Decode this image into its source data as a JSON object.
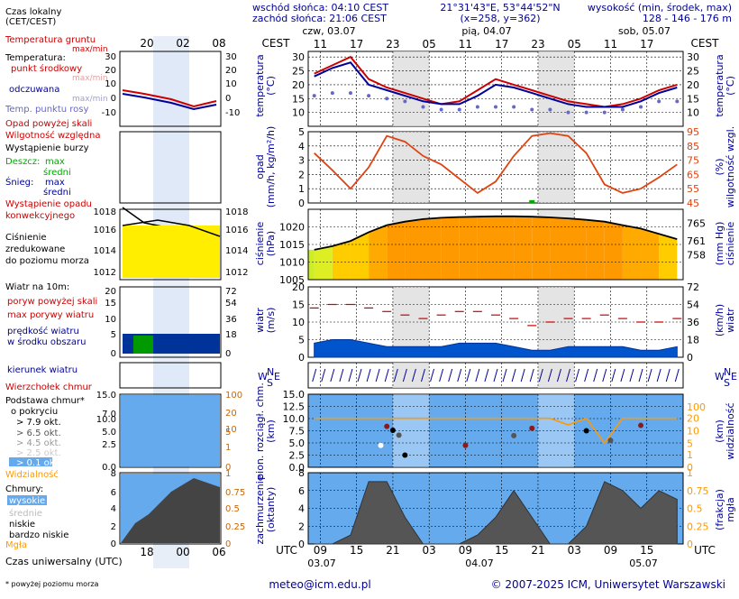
{
  "header": {
    "sunrise": "wschód słońca: 04:10 CEST",
    "sunset": "zachód słońca: 21:06 CEST",
    "coords": "21°31'43\"E, 53°44'52\"N",
    "grid": "(x=258, y=362)",
    "height_label": "wysokość (min, środek, max)",
    "height_values": "128 - 146 - 176 m",
    "tz_local": "CEST",
    "tz_utc": "UTC"
  },
  "days": [
    {
      "name": "czw, 03.07",
      "utc_date": "03.07"
    },
    {
      "name": "pią, 04.07",
      "utc_date": "04.07"
    },
    {
      "name": "sob, 05.07",
      "utc_date": "05.07"
    }
  ],
  "hours_local": [
    "11",
    "17",
    "23",
    "05",
    "11",
    "17",
    "23",
    "05",
    "11",
    "17"
  ],
  "hours_utc": [
    "09",
    "15",
    "21",
    "03",
    "09",
    "15",
    "21",
    "03",
    "09",
    "15"
  ],
  "legend_top": [
    "20",
    "02",
    "08"
  ],
  "legend_bottom": [
    "18",
    "00",
    "06"
  ],
  "legend": {
    "czas_lokalny": "Czas lokalny",
    "czas_lokalny2": "(CET/CEST)",
    "temp_gruntu": "Temperatura gruntu",
    "maxmin": "max/min",
    "temperatura": "Temperatura:",
    "punkt": "punkt środkowy",
    "maxmin2": "max/min",
    "odczuwana": "odczuwana",
    "maxmin3": "max/min",
    "rosa": "Temp. punktu rosy",
    "opad_skali": "Opad powyżej skali",
    "wilgotnosc": "Wilgotność względna",
    "burza": "Wystąpienie burzy",
    "deszcz": "Deszcz:",
    "max": "max",
    "sredni": "średni",
    "snieg": "Śnieg:",
    "max2": "max",
    "sredni2": "średni",
    "wyst_opadu": "Wystąpienie opadu",
    "konwekcyjnego": "konwekcyjnego",
    "cisnienie": "Ciśnienie",
    "zredukowane": "zredukowane",
    "poziom_morza": "do poziomu morza",
    "wiatr10": "Wiatr na 10m:",
    "poryw_skali": "poryw powyżej skali",
    "max_porywy": "max porywy wiatru",
    "predkosc": "prędkość wiatru",
    "srodek_obszaru": "w środku obszaru",
    "kierunek": "kierunek wiatru",
    "wierzcholek": "Wierzchołek chmur",
    "podstawa": "Podstawa chmur*",
    "o_pokryciu": "o pokryciu",
    "okt79": "> 7.9 okt.",
    "okt65": "> 6.5 okt.",
    "okt45": "> 4.5 okt.",
    "okt25": "> 2.5 okt.",
    "okt01": "> 0.1 okt.",
    "widzialnosc": "Widzialność",
    "chmury": "Chmury:",
    "wysokie": "wysokie",
    "srednie": "średnie",
    "niskie": "niskie",
    "bardzo_niskie": "bardzo niskie",
    "mgla": "Mgła",
    "utc_label": "Czas uniwersalny (UTC)",
    "footnote": "* powyżej poziomu morza"
  },
  "axis_titles": {
    "temp_l": "temperatura",
    "temp_l2": "(°C)",
    "temp_r": "temperatura",
    "temp_r2": "(°C)",
    "prec_l": "opad",
    "prec_l2": "(mm/h, kg/m²/h)",
    "prec_r": "wilgotność wzgl.",
    "prec_r2": "(%)",
    "pres_l": "ciśnienie",
    "pres_l2": "(hPa)",
    "pres_r": "ciśnienie",
    "pres_r2": "(mm Hg)",
    "wind_l": "wiatr",
    "wind_l2": "(m/s)",
    "wind_r": "wiatr",
    "wind_r2": "(km/h)",
    "cld_l": "pion. rozciągł. chm.",
    "cld_l2": "(km)",
    "cld_r": "widzialność",
    "cld_r2": "(km)",
    "cov_l": "zachmurzenie",
    "cov_l2": "(oktanty)",
    "cov_r": "(frakcja)",
    "cov_r2": "mgła"
  },
  "wind_dir_letters": {
    "n": "N",
    "w": "W",
    "e": "E",
    "s": "S"
  },
  "footer": {
    "email": "meteo@icm.edu.pl",
    "copyright": "© 2007-2025 ICM, Uniwersytet Warszawski"
  },
  "colors": {
    "temp": "#cc0000",
    "feels": "#000099",
    "dew": "#6666cc",
    "humidity": "#dd4411",
    "rain": "#00aa00",
    "pressure_fill": "#ff9900",
    "wind_gust": "#cc0000",
    "wind_fill": "#0055cc",
    "cloud_bg": "#66aaee",
    "visibility": "#ff9900",
    "night": "#dddddd"
  },
  "chart_data": [
    {
      "type": "line",
      "name_hint": "temperature",
      "x": [
        0,
        3,
        6,
        9,
        12,
        15,
        18,
        21,
        24,
        27,
        30,
        33,
        36,
        39,
        42,
        45,
        48,
        51,
        54,
        57,
        60
      ],
      "series": [
        {
          "values": [
            24,
            27,
            30,
            22,
            19,
            17,
            15,
            13,
            14,
            18,
            22,
            20,
            18,
            16,
            14,
            13,
            12,
            13,
            15,
            18,
            20
          ]
        },
        {
          "values": [
            23,
            26,
            28,
            20,
            18,
            16,
            14,
            13,
            13,
            16,
            20,
            19,
            17,
            15,
            13,
            12,
            12,
            12,
            14,
            17,
            19
          ]
        },
        {
          "values": [
            16,
            17,
            17,
            16,
            15,
            14,
            12,
            11,
            11,
            12,
            12,
            12,
            11,
            11,
            10,
            10,
            10,
            11,
            12,
            14,
            14
          ]
        }
      ],
      "ylim": [
        5,
        32
      ],
      "ticks": [
        10,
        15,
        20,
        25,
        30
      ]
    },
    {
      "type": "line",
      "name_hint": "precipitation-humidity",
      "x": [
        0,
        3,
        6,
        9,
        12,
        15,
        18,
        21,
        24,
        27,
        30,
        33,
        36,
        39,
        42,
        45,
        48,
        51,
        54,
        57,
        60
      ],
      "series": [
        {
          "values": [
            80,
            68,
            55,
            70,
            92,
            88,
            78,
            72,
            62,
            52,
            60,
            78,
            92,
            94,
            92,
            80,
            58,
            52,
            55,
            63,
            72
          ]
        }
      ],
      "rain": [
        0,
        0,
        0,
        0,
        0,
        0,
        0,
        0,
        0,
        0,
        0,
        0,
        0.2,
        0,
        0,
        0,
        0,
        0,
        0,
        0,
        0
      ],
      "ylim": [
        0,
        5
      ],
      "ticks_left": [
        0,
        1,
        2,
        3,
        4,
        5
      ],
      "ticks_right": [
        45,
        55,
        65,
        75,
        85,
        95
      ]
    },
    {
      "type": "area",
      "name_hint": "pressure",
      "x": [
        0,
        3,
        6,
        9,
        12,
        15,
        18,
        21,
        24,
        27,
        30,
        33,
        36,
        39,
        42,
        45,
        48,
        51,
        54,
        57,
        60
      ],
      "series": [
        {
          "values": [
            1013.5,
            1014.5,
            1016,
            1018.5,
            1020.5,
            1021.5,
            1022.2,
            1022.6,
            1022.8,
            1022.9,
            1023,
            1023,
            1022.9,
            1022.7,
            1022.4,
            1022,
            1021.5,
            1020.5,
            1019.5,
            1018,
            1016.5
          ]
        }
      ],
      "ylim": [
        1005,
        1025
      ],
      "ticks_left": [
        1005,
        1010,
        1015,
        1020
      ],
      "ticks_right": [
        758,
        761,
        765
      ]
    },
    {
      "type": "area",
      "name_hint": "wind",
      "x": [
        0,
        3,
        6,
        9,
        12,
        15,
        18,
        21,
        24,
        27,
        30,
        33,
        36,
        39,
        42,
        45,
        48,
        51,
        54,
        57,
        60
      ],
      "series": [
        {
          "values": [
            14,
            15,
            15,
            14,
            13,
            12,
            11,
            12,
            13,
            13,
            12,
            11,
            9,
            10,
            11,
            11,
            12,
            11,
            10,
            10,
            11
          ]
        },
        {
          "values": [
            4,
            5,
            5,
            4,
            3,
            3,
            3,
            3,
            4,
            4,
            4,
            3,
            2,
            2,
            3,
            3,
            3,
            3,
            2,
            2,
            3
          ]
        }
      ],
      "ylim": [
        0,
        20
      ],
      "ticks_left": [
        0,
        5,
        10,
        15,
        20
      ],
      "ticks_right": [
        0,
        18,
        36,
        54,
        72
      ]
    },
    {
      "type": "line",
      "name_hint": "clouds-visibility",
      "x": [
        0,
        3,
        6,
        9,
        12,
        15,
        18,
        21,
        24,
        27,
        30,
        33,
        36,
        39,
        42,
        45,
        48,
        51,
        54,
        57,
        60
      ],
      "series": [
        {
          "values": [
            20,
            20,
            20,
            20,
            20,
            20,
            20,
            20,
            20,
            20,
            20,
            20,
            20,
            20,
            15,
            20,
            5,
            20,
            20,
            20,
            20
          ]
        }
      ],
      "ylim": [
        0,
        15
      ],
      "ticks_left": [
        0,
        2.5,
        5,
        7.5,
        10,
        12.5,
        15
      ],
      "ticks_right": [
        0,
        1,
        5,
        10,
        20,
        100
      ]
    },
    {
      "type": "area",
      "name_hint": "cloud-cover",
      "x": [
        0,
        3,
        6,
        9,
        12,
        15,
        18,
        21,
        24,
        27,
        30,
        33,
        36,
        39,
        42,
        45,
        48,
        51,
        54,
        57,
        60
      ],
      "series": [
        {
          "values": [
            0,
            0,
            1,
            7,
            7,
            3,
            0,
            0,
            0,
            1,
            3,
            6,
            3,
            0,
            0,
            2,
            7,
            6,
            4,
            6,
            5
          ]
        }
      ],
      "ylim": [
        0,
        8
      ],
      "ticks_left": [
        0,
        2,
        4,
        6,
        8
      ],
      "ticks_right": [
        0,
        0.25,
        0.5,
        0.75,
        1
      ]
    }
  ]
}
